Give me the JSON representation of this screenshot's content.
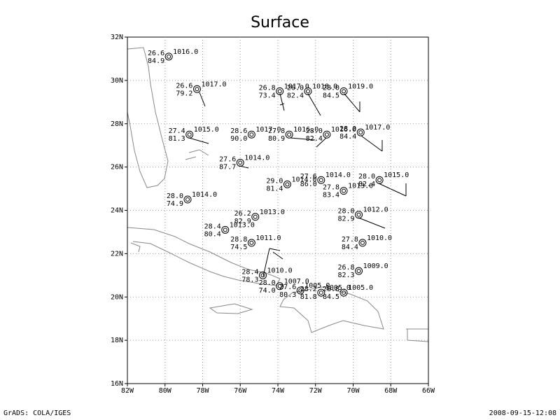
{
  "title": "Surface",
  "footer_left": "GrADS: COLA/IGES",
  "footer_right": "2008-09-15-12:08",
  "map": {
    "xlim": [
      -82,
      -66
    ],
    "ylim": [
      16,
      32
    ],
    "xticks": [
      {
        "value": -82,
        "label": "82W"
      },
      {
        "value": -80,
        "label": "80W"
      },
      {
        "value": -78,
        "label": "78W"
      },
      {
        "value": -76,
        "label": "76W"
      },
      {
        "value": -74,
        "label": "74W"
      },
      {
        "value": -72,
        "label": "72W"
      },
      {
        "value": -70,
        "label": "70W"
      },
      {
        "value": -68,
        "label": "68W"
      },
      {
        "value": -66,
        "label": "66W"
      }
    ],
    "yticks": [
      {
        "value": 16,
        "label": "16N"
      },
      {
        "value": 18,
        "label": "18N"
      },
      {
        "value": 20,
        "label": "20N"
      },
      {
        "value": 22,
        "label": "22N"
      },
      {
        "value": 24,
        "label": "24N"
      },
      {
        "value": 26,
        "label": "26N"
      },
      {
        "value": 28,
        "label": "28N"
      },
      {
        "value": 30,
        "label": "30N"
      },
      {
        "value": 32,
        "label": "32N"
      }
    ],
    "grid": true,
    "stations": [
      {
        "lon": -79.8,
        "lat": 31.1,
        "temperature": "26.6",
        "pressure": "1016.0",
        "dewpoint": "84.9"
      },
      {
        "lon": -78.3,
        "lat": 29.6,
        "temperature": "26.6",
        "pressure": "1017.0",
        "dewpoint": "79.2"
      },
      {
        "lon": -78.7,
        "lat": 27.5,
        "temperature": "27.4",
        "pressure": "1015.0",
        "dewpoint": "81.3"
      },
      {
        "lon": -73.9,
        "lat": 29.5,
        "temperature": "26.8",
        "pressure": "1017.0",
        "dewpoint": "73.4"
      },
      {
        "lon": -72.4,
        "lat": 29.5,
        "temperature": "26.0",
        "pressure": "1018.0",
        "dewpoint": "82.4"
      },
      {
        "lon": -70.5,
        "lat": 29.5,
        "temperature": "28.0",
        "pressure": "1019.0",
        "dewpoint": "84.5"
      },
      {
        "lon": -75.4,
        "lat": 27.5,
        "temperature": "28.6",
        "pressure": "1017.0",
        "dewpoint": "90.0"
      },
      {
        "lon": -73.4,
        "lat": 27.5,
        "temperature": "27.8",
        "pressure": "1016.0",
        "dewpoint": "80.9"
      },
      {
        "lon": -71.4,
        "lat": 27.5,
        "temperature": "28.0",
        "pressure": "1016.0",
        "dewpoint": "82.4"
      },
      {
        "lon": -69.6,
        "lat": 27.6,
        "temperature": "28.0",
        "pressure": "1017.0",
        "dewpoint": "84.4"
      },
      {
        "lon": -76.0,
        "lat": 26.2,
        "temperature": "27.6",
        "pressure": "1014.0",
        "dewpoint": "87.7"
      },
      {
        "lon": -78.8,
        "lat": 24.5,
        "temperature": "28.0",
        "pressure": "1014.0",
        "dewpoint": "74.9"
      },
      {
        "lon": -75.2,
        "lat": 23.7,
        "temperature": "26.2",
        "pressure": "1013.0",
        "dewpoint": "82.9"
      },
      {
        "lon": -76.8,
        "lat": 23.1,
        "temperature": "28.4",
        "pressure": "1013.0",
        "dewpoint": "80.4"
      },
      {
        "lon": -75.4,
        "lat": 22.5,
        "temperature": "28.8",
        "pressure": "1011.0",
        "dewpoint": "74.5"
      },
      {
        "lon": -73.5,
        "lat": 25.2,
        "temperature": "29.0",
        "pressure": "1014.0",
        "dewpoint": "81.4"
      },
      {
        "lon": -71.7,
        "lat": 25.4,
        "temperature": "27.6",
        "pressure": "1014.0",
        "dewpoint": "86.0"
      },
      {
        "lon": -70.5,
        "lat": 24.9,
        "temperature": "27.8",
        "pressure": "1013.0",
        "dewpoint": "83.4"
      },
      {
        "lon": -68.6,
        "lat": 25.4,
        "temperature": "28.0",
        "pressure": "1015.0",
        "dewpoint": "82.4"
      },
      {
        "lon": -69.7,
        "lat": 23.8,
        "temperature": "28.0",
        "pressure": "1012.0",
        "dewpoint": "82.9"
      },
      {
        "lon": -69.5,
        "lat": 22.5,
        "temperature": "27.8",
        "pressure": "1010.0",
        "dewpoint": "84.4"
      },
      {
        "lon": -69.7,
        "lat": 21.2,
        "temperature": "26.8",
        "pressure": "1009.0",
        "dewpoint": "82.3"
      },
      {
        "lon": -74.8,
        "lat": 21.0,
        "temperature": "28.4",
        "pressure": "1010.0",
        "dewpoint": "78.3"
      },
      {
        "lon": -73.9,
        "lat": 20.5,
        "temperature": "28.0",
        "pressure": "1007.0",
        "dewpoint": "74.0"
      },
      {
        "lon": -72.8,
        "lat": 20.3,
        "temperature": "27.6",
        "pressure": "1005.0",
        "dewpoint": "80.3"
      },
      {
        "lon": -71.7,
        "lat": 20.2,
        "temperature": "28.2",
        "pressure": "1005.0",
        "dewpoint": "81.8"
      },
      {
        "lon": -70.5,
        "lat": 20.2,
        "temperature": "28.8",
        "pressure": "1005.0",
        "dewpoint": "84.5"
      }
    ]
  }
}
